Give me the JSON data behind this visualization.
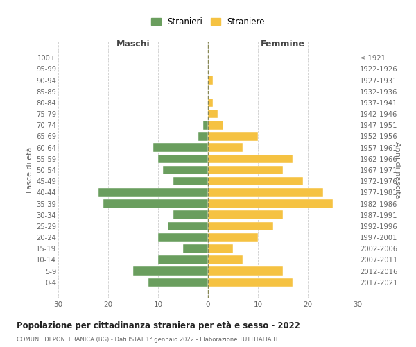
{
  "age_groups": [
    "0-4",
    "5-9",
    "10-14",
    "15-19",
    "20-24",
    "25-29",
    "30-34",
    "35-39",
    "40-44",
    "45-49",
    "50-54",
    "55-59",
    "60-64",
    "65-69",
    "70-74",
    "75-79",
    "80-84",
    "85-89",
    "90-94",
    "95-99",
    "100+"
  ],
  "birth_years": [
    "2017-2021",
    "2012-2016",
    "2007-2011",
    "2002-2006",
    "1997-2001",
    "1992-1996",
    "1987-1991",
    "1982-1986",
    "1977-1981",
    "1972-1976",
    "1967-1971",
    "1962-1966",
    "1957-1961",
    "1952-1956",
    "1947-1951",
    "1942-1946",
    "1937-1941",
    "1932-1936",
    "1927-1931",
    "1922-1926",
    "≤ 1921"
  ],
  "males": [
    12,
    15,
    10,
    5,
    10,
    8,
    7,
    21,
    22,
    7,
    9,
    10,
    11,
    2,
    1,
    0,
    0,
    0,
    0,
    0,
    0
  ],
  "females": [
    17,
    15,
    7,
    5,
    10,
    13,
    15,
    25,
    23,
    19,
    15,
    17,
    7,
    10,
    3,
    2,
    1,
    0,
    1,
    0,
    0
  ],
  "male_color": "#6a9e5e",
  "female_color": "#f5c242",
  "background_color": "#ffffff",
  "grid_color": "#cccccc",
  "title": "Popolazione per cittadinanza straniera per età e sesso - 2022",
  "subtitle": "COMUNE DI PONTERANICA (BG) - Dati ISTAT 1° gennaio 2022 - Elaborazione TUTTITALIA.IT",
  "xlabel_left": "Maschi",
  "xlabel_right": "Femmine",
  "ylabel_left": "Fasce di età",
  "ylabel_right": "Anni di nascita",
  "legend_male": "Stranieri",
  "legend_female": "Straniere",
  "xlim": 30,
  "dashed_line_color": "#888855"
}
